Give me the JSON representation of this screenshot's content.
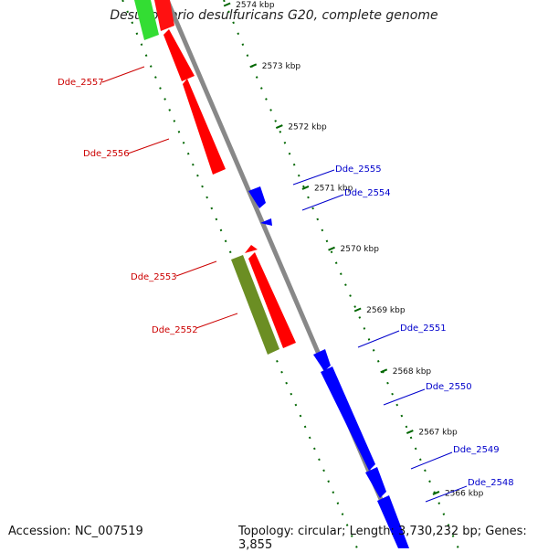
{
  "header": {
    "title": "Desulfovibrio desulfuricans G20, complete genome"
  },
  "footer": {
    "accession": "Accession: NC_007519",
    "summary": "Topology: circular; Length: 3,730,232 bp; Genes: 3,855"
  },
  "scale": {
    "ticks": [
      {
        "label": "2574 kbp",
        "kbp": 2574
      },
      {
        "label": "2573 kbp",
        "kbp": 2573
      },
      {
        "label": "2572 kbp",
        "kbp": 2572
      },
      {
        "label": "2571 kbp",
        "kbp": 2571
      },
      {
        "label": "2570 kbp",
        "kbp": 2570
      },
      {
        "label": "2569 kbp",
        "kbp": 2569
      },
      {
        "label": "2568 kbp",
        "kbp": 2568
      },
      {
        "label": "2567 kbp",
        "kbp": 2567
      },
      {
        "label": "2566 kbp",
        "kbp": 2566
      }
    ]
  },
  "genes": [
    {
      "name": "Dde_2557",
      "strand": "reverse",
      "color": "#cc0000"
    },
    {
      "name": "Dde_2556",
      "strand": "reverse",
      "color": "#cc0000"
    },
    {
      "name": "Dde_2555",
      "strand": "forward",
      "color": "#0000cc"
    },
    {
      "name": "Dde_2554",
      "strand": "forward",
      "color": "#0000cc"
    },
    {
      "name": "Dde_2553",
      "strand": "reverse",
      "color": "#cc0000"
    },
    {
      "name": "Dde_2552",
      "strand": "reverse",
      "color": "#cc0000"
    },
    {
      "name": "Dde_2551",
      "strand": "forward",
      "color": "#0000cc"
    },
    {
      "name": "Dde_2550",
      "strand": "forward",
      "color": "#0000cc"
    },
    {
      "name": "Dde_2549",
      "strand": "forward",
      "color": "#0000cc"
    },
    {
      "name": "Dde_2548",
      "strand": "forward",
      "color": "#0000cc"
    }
  ],
  "colors": {
    "backbone": "#888888",
    "forward_cds": "#0000ff",
    "reverse_cds": "#ff0000",
    "rna": "#6b8e23",
    "other": "#33cc33",
    "scale_dots": "#006600"
  }
}
